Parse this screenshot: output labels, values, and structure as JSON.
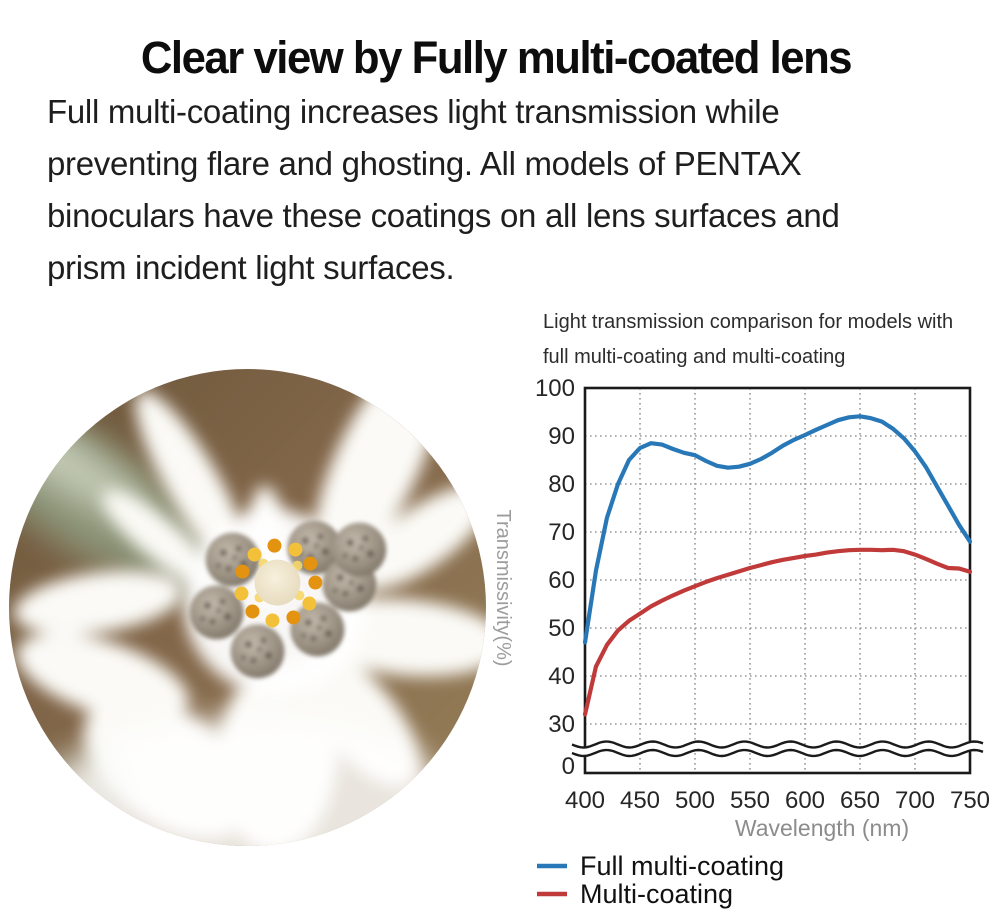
{
  "page": {
    "title": "Clear view by Fully multi-coated lens"
  },
  "intro": {
    "lines": [
      "Full multi-coating increases light transmission while",
      "preventing flare and ghosting. All models of PENTAX",
      "binoculars have these coatings on all lens surfaces and",
      "prism incident light surfaces."
    ]
  },
  "chart": {
    "title_lines": [
      "Light transmission comparison for models with",
      "full multi-coating and multi-coating"
    ]
  },
  "chart_data": {
    "type": "line",
    "title": "Light transmission comparison for models with full multi-coating and multi-coating",
    "xlabel": "Wavelength (nm)",
    "ylabel": "Transmissivity(%)",
    "xlim": [
      400,
      750
    ],
    "ylim_main": [
      30,
      100
    ],
    "axis_break_between": [
      0,
      30
    ],
    "grid": "dotted",
    "legend_position": "bottom-left",
    "x_ticks": [
      400,
      450,
      500,
      550,
      600,
      650,
      700,
      750
    ],
    "y_ticks": [
      100,
      90,
      80,
      70,
      60,
      50,
      40,
      30,
      0
    ],
    "x": [
      400,
      410,
      420,
      430,
      440,
      450,
      460,
      470,
      480,
      490,
      500,
      510,
      520,
      530,
      540,
      550,
      560,
      570,
      580,
      590,
      600,
      610,
      620,
      630,
      640,
      650,
      660,
      670,
      680,
      690,
      700,
      710,
      720,
      730,
      740,
      750
    ],
    "series": [
      {
        "name": "Full multi-coating",
        "color": "#2878b8",
        "values": [
          47,
          62,
          73,
          80,
          85,
          87.5,
          88.5,
          88.2,
          87.3,
          86.5,
          86,
          84.8,
          83.8,
          83.4,
          83.6,
          84.2,
          85.2,
          86.5,
          88,
          89.2,
          90.2,
          91.3,
          92.3,
          93.3,
          93.9,
          94.1,
          93.7,
          93,
          91.5,
          89.5,
          86.8,
          83.5,
          79.5,
          75.5,
          71.5,
          68
        ]
      },
      {
        "name": "Multi-coating",
        "color": "#c03a3a",
        "values": [
          32,
          42,
          46.5,
          49.5,
          51.5,
          53,
          54.5,
          55.7,
          56.8,
          57.8,
          58.7,
          59.6,
          60.4,
          61.1,
          61.8,
          62.5,
          63.1,
          63.7,
          64.2,
          64.6,
          65,
          65.3,
          65.7,
          66,
          66.2,
          66.3,
          66.3,
          66.2,
          66.3,
          66,
          65.3,
          64.4,
          63.4,
          62.5,
          62.4,
          61.7
        ]
      }
    ],
    "colors": {
      "axis": "#1a1a1a",
      "grid": "#999999",
      "tick_label": "#262626",
      "axis_label_gray": "#8c8c8c",
      "ylabel_gray": "#9c9c9c",
      "legend_text": "#111111"
    }
  }
}
